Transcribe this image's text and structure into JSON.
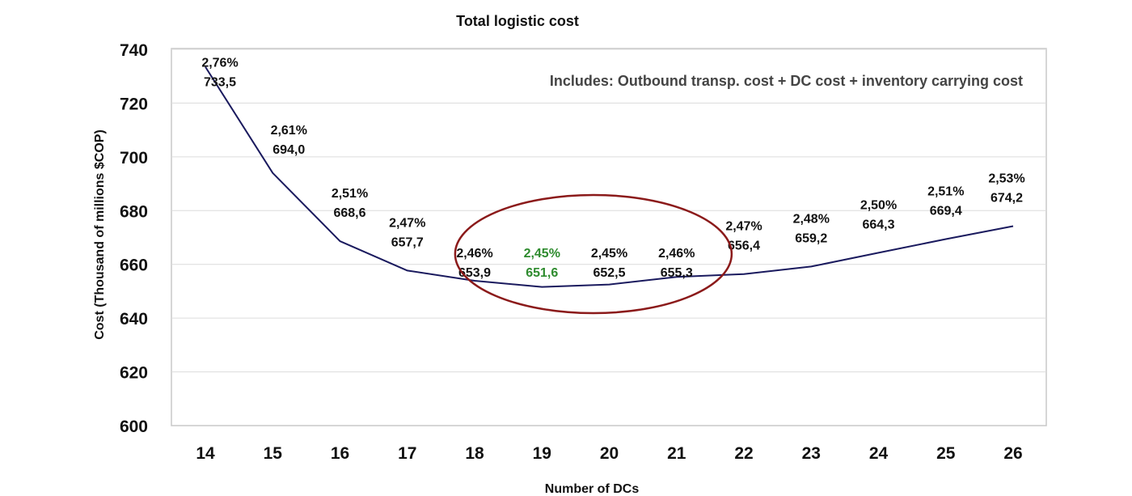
{
  "chart_data": {
    "type": "line",
    "title": "Total logistic cost",
    "xlabel": "Number of DCs",
    "ylabel": "Cost (Thousand of millions $COP)",
    "annotation": "Includes: Outbound transp. cost + DC cost + inventory carrying cost",
    "x": [
      14,
      15,
      16,
      17,
      18,
      19,
      20,
      21,
      22,
      23,
      24,
      25,
      26
    ],
    "series": [
      {
        "values": [
          733.5,
          694.0,
          668.6,
          657.7,
          653.9,
          651.6,
          652.5,
          655.3,
          656.4,
          659.2,
          664.3,
          669.4,
          674.2
        ]
      }
    ],
    "data_labels": [
      {
        "pct": "2,76%",
        "val": "733,5"
      },
      {
        "pct": "2,61%",
        "val": "694,0"
      },
      {
        "pct": "2,51%",
        "val": "668,6"
      },
      {
        "pct": "2,47%",
        "val": "657,7"
      },
      {
        "pct": "2,46%",
        "val": "653,9"
      },
      {
        "pct": "2,45%",
        "val": "651,6"
      },
      {
        "pct": "2,45%",
        "val": "652,5"
      },
      {
        "pct": "2,46%",
        "val": "655,3"
      },
      {
        "pct": "2,47%",
        "val": "656,4"
      },
      {
        "pct": "2,48%",
        "val": "659,2"
      },
      {
        "pct": "2,50%",
        "val": "664,3"
      },
      {
        "pct": "2,51%",
        "val": "669,4"
      },
      {
        "pct": "2,53%",
        "val": "674,2"
      }
    ],
    "yticks": [
      "600",
      "620",
      "640",
      "660",
      "680",
      "700",
      "720",
      "740"
    ],
    "ylim": [
      600,
      740
    ],
    "highlight_index": 5,
    "highlight_range": [
      18,
      21
    ],
    "grid": true,
    "colors": {
      "line": "#1a1a5e",
      "highlight_label": "#2e8b2e",
      "ellipse": "#8b1a1a",
      "grid": "#dcdcdc",
      "frame": "#c8c8c8"
    }
  }
}
